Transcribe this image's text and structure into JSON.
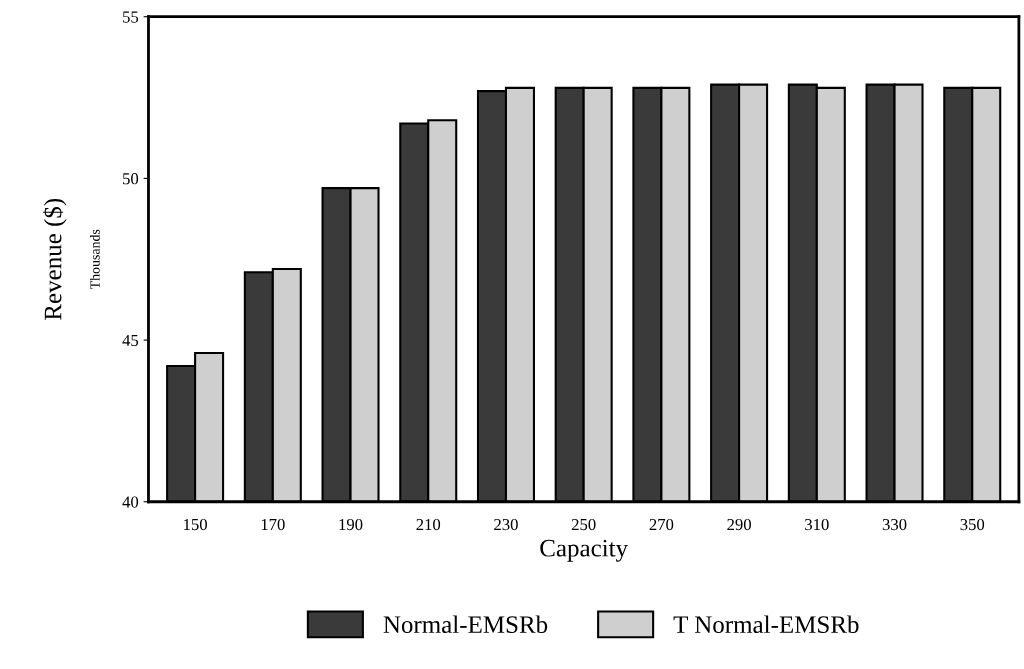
{
  "chart_data": {
    "type": "bar",
    "xlabel": "Capacity",
    "ylabel": "Revenue ($)",
    "annotations": [
      "Thousands"
    ],
    "categories": [
      "150",
      "170",
      "190",
      "210",
      "230",
      "250",
      "270",
      "290",
      "310",
      "330",
      "350"
    ],
    "series": [
      {
        "name": "Normal-EMSRb",
        "color": "#3a3a3a",
        "values": [
          44.2,
          47.1,
          49.7,
          51.7,
          52.7,
          52.8,
          52.8,
          52.9,
          52.9,
          52.9,
          52.8
        ]
      },
      {
        "name": "T Normal-EMSRb",
        "color": "#cfcfcf",
        "values": [
          44.6,
          47.2,
          49.7,
          51.8,
          52.8,
          52.8,
          52.8,
          52.9,
          52.8,
          52.9,
          52.8
        ]
      }
    ],
    "ylim": [
      40,
      55
    ],
    "yticks": [
      40,
      45,
      50,
      55
    ],
    "grid": false,
    "legend": "bottom"
  }
}
